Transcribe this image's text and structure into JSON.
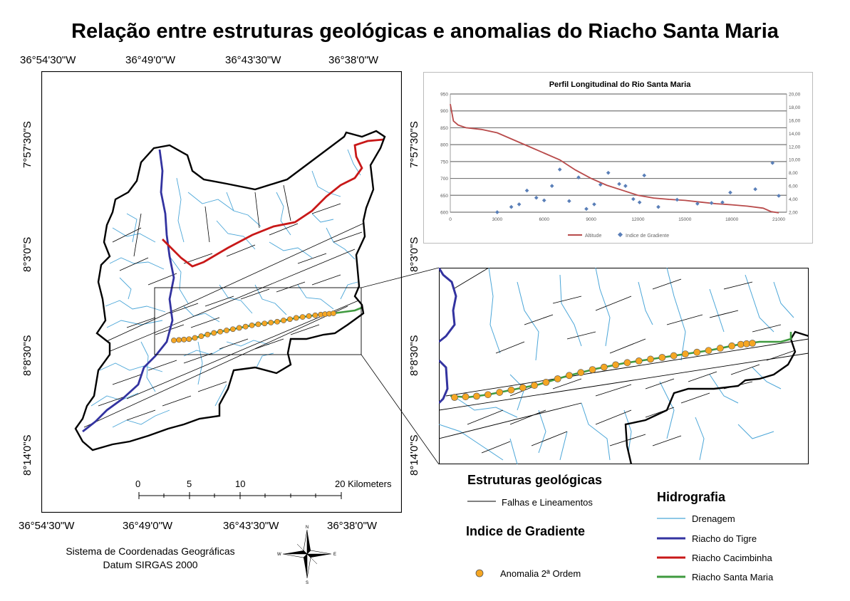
{
  "title": "Relação entre estruturas geológicas e anomalias do Riacho Santa Maria",
  "map": {
    "top_lon_labels": [
      "36°54'30\"W",
      "36°49'0\"W",
      "36°43'30\"W",
      "36°38'0\"W"
    ],
    "bottom_lon_labels": [
      "36°54'30\"W",
      "36°49'0\"W",
      "36°43'30\"W",
      "36°38'0\"W"
    ],
    "left_lat_labels": [
      "7°57'30\"S",
      "8°3'0\"S",
      "8°8'30\"S",
      "8°14'0\"S"
    ],
    "right_lat_labels": [
      "7°57'30\"S",
      "8°3'0\"S",
      "8°8'30\"S",
      "8°14'0\"S"
    ],
    "scale_ticks": [
      "0",
      "5",
      "10",
      "20 Kilometers"
    ],
    "colors": {
      "drainage": "#4ba6d8",
      "tigre": "#3333a0",
      "cacimbinha": "#cc1111",
      "santa_maria": "#3f9a3f",
      "anomaly": "#f5a623"
    }
  },
  "profile_chart": {
    "title": "Perfil Longitudinal do Rio Santa Maria",
    "left_ticks": [
      "950",
      "900",
      "850",
      "800",
      "750",
      "700",
      "650",
      "600"
    ],
    "right_ticks": [
      "20,00",
      "18,00",
      "16,00",
      "14,00",
      "12,00",
      "10,00",
      "8,00",
      "6,00",
      "4,00",
      "2,00"
    ],
    "x_ticks": [
      "0",
      "3000",
      "6000",
      "9000",
      "12000",
      "15000",
      "18000",
      "21000"
    ],
    "legend": {
      "altitude": "Altitude",
      "gradient": "Indice de Gradiente"
    }
  },
  "chart_data": {
    "type": "line",
    "title": "Perfil Longitudinal do Rio Santa Maria",
    "xlim": [
      0,
      21500
    ],
    "ylim": [
      600,
      950
    ],
    "y2lim": [
      2,
      20
    ],
    "series": [
      {
        "name": "Altitude",
        "axis": "left",
        "color": "#b84a4a",
        "x": [
          0,
          200,
          500,
          1000,
          2000,
          3000,
          4000,
          5000,
          6000,
          7000,
          8000,
          9000,
          10000,
          11000,
          12000,
          13000,
          14000,
          15000,
          16000,
          17000,
          18000,
          19000,
          20000,
          20500,
          21000
        ],
        "y": [
          920,
          870,
          858,
          850,
          845,
          835,
          815,
          795,
          775,
          755,
          725,
          700,
          680,
          665,
          650,
          642,
          638,
          635,
          630,
          625,
          622,
          618,
          612,
          602,
          598
        ]
      },
      {
        "name": "Indice de Gradiente",
        "axis": "right",
        "color": "#5a7fb8",
        "x": [
          3000,
          3900,
          4400,
          4900,
          5500,
          6000,
          6500,
          7000,
          7600,
          8200,
          8700,
          9200,
          9600,
          10100,
          10800,
          11200,
          11700,
          12100,
          12400,
          13300,
          14500,
          15800,
          16700,
          17400,
          17900,
          19500,
          20600,
          21000
        ],
        "y": [
          2.0,
          2.8,
          3.2,
          5.3,
          4.2,
          3.8,
          6.0,
          8.5,
          3.7,
          7.3,
          2.5,
          3.2,
          6.2,
          8.0,
          6.3,
          6.0,
          4.0,
          3.5,
          7.6,
          2.8,
          3.9,
          3.3,
          3.4,
          3.5,
          5.0,
          5.5,
          9.5,
          4.5
        ]
      }
    ]
  },
  "legend": {
    "estruturas_title": "Estruturas geológicas",
    "falhas": "Falhas e Lineamentos",
    "indice_title": "Indice de Gradiente",
    "anomalia": "Anomalia 2ª Ordem",
    "hidro_title": "Hidrografia",
    "drenagem": "Drenagem",
    "tigre": "Riacho do Tigre",
    "cacimbinha": "Riacho Cacimbinha",
    "santa_maria": "Riacho Santa Maria"
  },
  "footer": {
    "line1": "Sistema de Coordenadas Geográficas",
    "line2": "Datum SIRGAS 2000"
  },
  "compass": {
    "n": "N",
    "s": "S",
    "e": "E",
    "w": "W"
  }
}
